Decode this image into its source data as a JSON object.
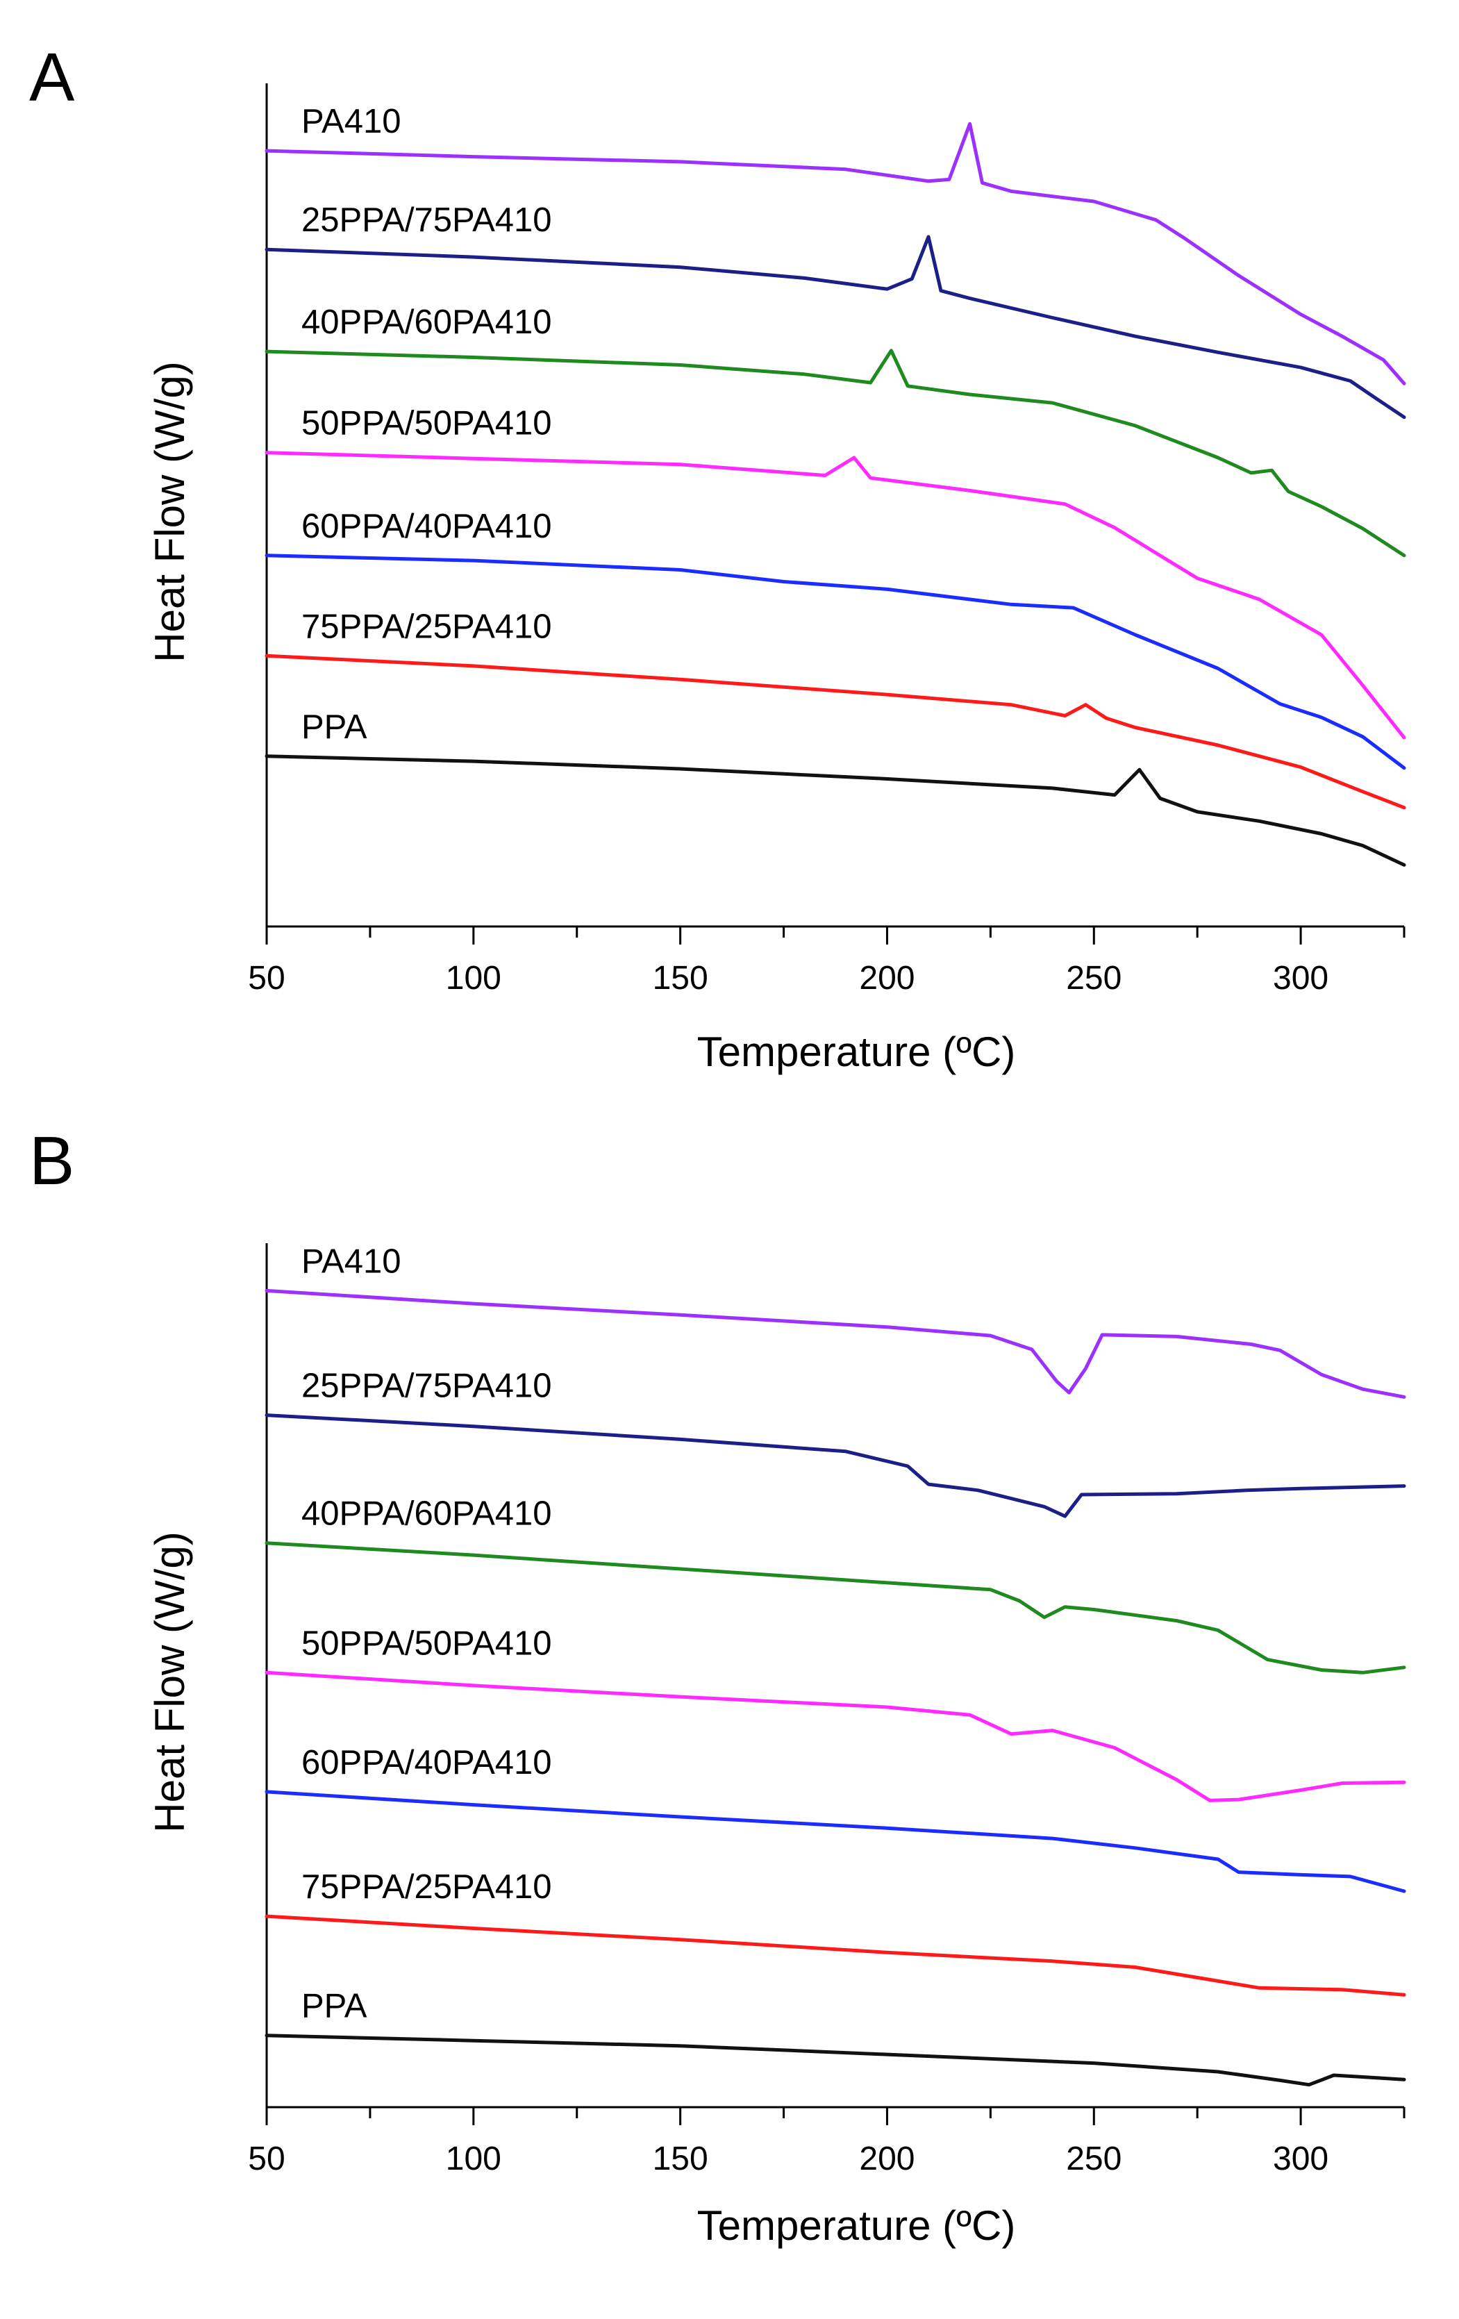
{
  "figure": {
    "panels": [
      {
        "id": "A",
        "letter": "A"
      },
      {
        "id": "B",
        "letter": "B"
      }
    ]
  },
  "chart_data": [
    {
      "panel": "A",
      "type": "line",
      "xlabel": "Temperature (ºC)",
      "ylabel": "Heat Flow (W/g)",
      "xlim": [
        50,
        325
      ],
      "xticks": [
        50,
        100,
        150,
        200,
        250,
        300
      ],
      "y_tick_labels": false,
      "note": "curves offset vertically; y values are relative offset units",
      "ylim": [
        0,
        100
      ],
      "series": [
        {
          "name": "PA410",
          "color": "#9b30ff",
          "points": [
            [
              50,
              92
            ],
            [
              100,
              91.3
            ],
            [
              150,
              90.7
            ],
            [
              190,
              89.8
            ],
            [
              210,
              88.4
            ],
            [
              215,
              88.6
            ],
            [
              220,
              95.2
            ],
            [
              223,
              88.2
            ],
            [
              230,
              87.2
            ],
            [
              250,
              86.0
            ],
            [
              265,
              83.8
            ],
            [
              272,
              81.6
            ],
            [
              285,
              77.2
            ],
            [
              300,
              72.6
            ],
            [
              310,
              70.0
            ],
            [
              320,
              67.2
            ],
            [
              325,
              64.4
            ]
          ]
        },
        {
          "name": "25PPA/75PA410",
          "color": "#1b1f87",
          "points": [
            [
              50,
              80.3
            ],
            [
              100,
              79.4
            ],
            [
              150,
              78.2
            ],
            [
              180,
              76.9
            ],
            [
              200,
              75.6
            ],
            [
              206,
              76.8
            ],
            [
              210,
              81.8
            ],
            [
              213,
              75.4
            ],
            [
              220,
              74.5
            ],
            [
              240,
              72.2
            ],
            [
              260,
              70.0
            ],
            [
              280,
              68.1
            ],
            [
              300,
              66.3
            ],
            [
              312,
              64.7
            ],
            [
              318,
              62.7
            ],
            [
              325,
              60.4
            ]
          ]
        },
        {
          "name": "40PPA/60PA410",
          "color": "#1f8a1f",
          "points": [
            [
              50,
              68.2
            ],
            [
              100,
              67.5
            ],
            [
              150,
              66.6
            ],
            [
              180,
              65.5
            ],
            [
              196,
              64.5
            ],
            [
              201,
              68.3
            ],
            [
              205,
              64.1
            ],
            [
              220,
              63.1
            ],
            [
              240,
              62.1
            ],
            [
              260,
              59.4
            ],
            [
              280,
              55.6
            ],
            [
              288,
              53.8
            ],
            [
              293,
              54.1
            ],
            [
              297,
              51.6
            ],
            [
              305,
              49.8
            ],
            [
              315,
              47.2
            ],
            [
              325,
              44.0
            ]
          ]
        },
        {
          "name": "50PPA/50PA410",
          "color": "#ff2aff",
          "points": [
            [
              50,
              56.2
            ],
            [
              100,
              55.5
            ],
            [
              150,
              54.8
            ],
            [
              185,
              53.5
            ],
            [
              192,
              55.6
            ],
            [
              196,
              53.2
            ],
            [
              220,
              51.7
            ],
            [
              243,
              50.1
            ],
            [
              255,
              47.3
            ],
            [
              265,
              44.3
            ],
            [
              275,
              41.3
            ],
            [
              290,
              38.8
            ],
            [
              305,
              34.6
            ],
            [
              315,
              28.6
            ],
            [
              325,
              22.4
            ]
          ]
        },
        {
          "name": "60PPA/40PA410",
          "color": "#1a2cff",
          "points": [
            [
              50,
              44.0
            ],
            [
              100,
              43.4
            ],
            [
              150,
              42.3
            ],
            [
              175,
              40.9
            ],
            [
              200,
              40.0
            ],
            [
              230,
              38.2
            ],
            [
              245,
              37.8
            ],
            [
              260,
              34.6
            ],
            [
              280,
              30.6
            ],
            [
              295,
              26.4
            ],
            [
              305,
              24.8
            ],
            [
              315,
              22.5
            ],
            [
              325,
              18.8
            ]
          ]
        },
        {
          "name": "75PPA/25PA410",
          "color": "#ff1a1a",
          "points": [
            [
              50,
              32.1
            ],
            [
              100,
              30.9
            ],
            [
              150,
              29.3
            ],
            [
              200,
              27.5
            ],
            [
              230,
              26.3
            ],
            [
              243,
              25.0
            ],
            [
              248,
              26.3
            ],
            [
              253,
              24.7
            ],
            [
              260,
              23.6
            ],
            [
              280,
              21.5
            ],
            [
              300,
              18.9
            ],
            [
              315,
              16.0
            ],
            [
              325,
              14.1
            ]
          ]
        },
        {
          "name": "PPA",
          "color": "#111111",
          "points": [
            [
              50,
              20.2
            ],
            [
              100,
              19.6
            ],
            [
              150,
              18.7
            ],
            [
              200,
              17.5
            ],
            [
              240,
              16.4
            ],
            [
              255,
              15.6
            ],
            [
              261,
              18.6
            ],
            [
              266,
              15.2
            ],
            [
              275,
              13.6
            ],
            [
              290,
              12.5
            ],
            [
              305,
              11.0
            ],
            [
              315,
              9.6
            ],
            [
              325,
              7.3
            ]
          ]
        }
      ]
    },
    {
      "panel": "B",
      "type": "line",
      "xlabel": "Temperature (ºC)",
      "ylabel": "Heat Flow (W/g)",
      "xlim": [
        50,
        325
      ],
      "xticks": [
        50,
        100,
        150,
        200,
        250,
        300
      ],
      "y_tick_labels": false,
      "note": "curves offset vertically; y values are relative offset units",
      "ylim": [
        0,
        100
      ],
      "series": [
        {
          "name": "PA410",
          "color": "#9b30ff",
          "points": [
            [
              50,
              94.5
            ],
            [
              100,
              93.0
            ],
            [
              150,
              91.7
            ],
            [
              200,
              90.3
            ],
            [
              225,
              89.3
            ],
            [
              235,
              87.7
            ],
            [
              241,
              84.0
            ],
            [
              244,
              82.7
            ],
            [
              248,
              85.5
            ],
            [
              252,
              89.4
            ],
            [
              270,
              89.2
            ],
            [
              288,
              88.3
            ],
            [
              295,
              87.6
            ],
            [
              305,
              84.8
            ],
            [
              315,
              83.1
            ],
            [
              325,
              82.2
            ]
          ]
        },
        {
          "name": "25PPA/75PA410",
          "color": "#1b1f87",
          "points": [
            [
              50,
              80.1
            ],
            [
              100,
              78.8
            ],
            [
              150,
              77.3
            ],
            [
              190,
              75.9
            ],
            [
              205,
              74.2
            ],
            [
              210,
              72.1
            ],
            [
              222,
              71.4
            ],
            [
              238,
              69.5
            ],
            [
              243,
              68.4
            ],
            [
              247,
              70.9
            ],
            [
              270,
              71.0
            ],
            [
              287,
              71.4
            ],
            [
              300,
              71.6
            ],
            [
              325,
              71.9
            ]
          ]
        },
        {
          "name": "40PPA/60PA410",
          "color": "#1f8a1f",
          "points": [
            [
              50,
              65.3
            ],
            [
              100,
              63.9
            ],
            [
              150,
              62.3
            ],
            [
              200,
              60.7
            ],
            [
              225,
              59.9
            ],
            [
              232,
              58.6
            ],
            [
              238,
              56.7
            ],
            [
              243,
              57.9
            ],
            [
              250,
              57.6
            ],
            [
              270,
              56.3
            ],
            [
              280,
              55.2
            ],
            [
              292,
              51.8
            ],
            [
              305,
              50.6
            ],
            [
              315,
              50.3
            ],
            [
              325,
              50.9
            ]
          ]
        },
        {
          "name": "50PPA/50PA410",
          "color": "#ff2aff",
          "points": [
            [
              50,
              50.3
            ],
            [
              100,
              48.8
            ],
            [
              150,
              47.5
            ],
            [
              200,
              46.3
            ],
            [
              220,
              45.4
            ],
            [
              230,
              43.2
            ],
            [
              240,
              43.6
            ],
            [
              255,
              41.6
            ],
            [
              270,
              37.9
            ],
            [
              278,
              35.5
            ],
            [
              285,
              35.6
            ],
            [
              300,
              36.7
            ],
            [
              310,
              37.5
            ],
            [
              325,
              37.6
            ]
          ]
        },
        {
          "name": "60PPA/40PA410",
          "color": "#1a2cff",
          "points": [
            [
              50,
              36.5
            ],
            [
              100,
              35.0
            ],
            [
              150,
              33.6
            ],
            [
              200,
              32.3
            ],
            [
              240,
              31.1
            ],
            [
              260,
              30.0
            ],
            [
              280,
              28.7
            ],
            [
              285,
              27.2
            ],
            [
              300,
              26.9
            ],
            [
              312,
              26.7
            ],
            [
              325,
              25.0
            ]
          ]
        },
        {
          "name": "75PPA/25PA410",
          "color": "#ff1a1a",
          "points": [
            [
              50,
              22.1
            ],
            [
              100,
              20.7
            ],
            [
              150,
              19.4
            ],
            [
              200,
              17.9
            ],
            [
              240,
              16.9
            ],
            [
              260,
              16.2
            ],
            [
              280,
              14.6
            ],
            [
              290,
              13.8
            ],
            [
              310,
              13.6
            ],
            [
              325,
              13.0
            ]
          ]
        },
        {
          "name": "PPA",
          "color": "#111111",
          "points": [
            [
              50,
              8.3
            ],
            [
              100,
              7.7
            ],
            [
              150,
              7.1
            ],
            [
              200,
              6.1
            ],
            [
              250,
              5.1
            ],
            [
              280,
              4.1
            ],
            [
              295,
              3.1
            ],
            [
              302,
              2.6
            ],
            [
              308,
              3.7
            ],
            [
              315,
              3.5
            ],
            [
              325,
              3.2
            ]
          ]
        }
      ]
    }
  ]
}
